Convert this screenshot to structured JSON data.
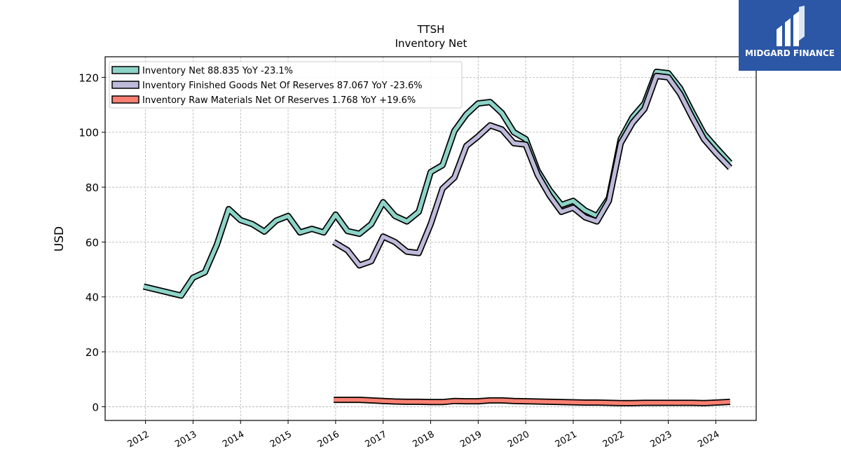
{
  "chart_data": {
    "type": "line",
    "title": "TTSH",
    "subtitle": "Inventory Net",
    "ylabel": "USD",
    "xlabel": "",
    "ylim": [
      -5,
      127.5
    ],
    "xlim": [
      2011.15,
      2024.85
    ],
    "yticks": [
      0,
      20,
      40,
      60,
      80,
      100,
      120
    ],
    "xticks": [
      2012,
      2013,
      2014,
      2015,
      2016,
      2017,
      2018,
      2019,
      2020,
      2021,
      2022,
      2023,
      2024
    ],
    "xtick_labels": [
      "2012",
      "2013",
      "2014",
      "2015",
      "2016",
      "2017",
      "2018",
      "2019",
      "2020",
      "2021",
      "2022",
      "2023",
      "2024"
    ],
    "grid": true,
    "legend_position": "top-left",
    "series": [
      {
        "name": "Inventory Net",
        "legend_label": "Inventory Net  88.835 YoY -23.1%",
        "color": "#8dd3c7",
        "x": [
          2011.96,
          2012.75,
          2013.0,
          2013.25,
          2013.5,
          2013.75,
          2014.0,
          2014.25,
          2014.5,
          2014.75,
          2015.0,
          2015.25,
          2015.5,
          2015.75,
          2016.0,
          2016.25,
          2016.5,
          2016.75,
          2017.0,
          2017.25,
          2017.5,
          2017.75,
          2018.0,
          2018.25,
          2018.5,
          2018.75,
          2019.0,
          2019.25,
          2019.5,
          2019.75,
          2020.0,
          2020.25,
          2020.5,
          2020.75,
          2021.0,
          2021.25,
          2021.5,
          2021.75,
          2022.0,
          2022.25,
          2022.5,
          2022.75,
          2023.0,
          2023.25,
          2023.5,
          2023.75,
          2024.0,
          2024.3
        ],
        "y": [
          43.8,
          40.5,
          47.0,
          49.0,
          59.0,
          72.0,
          68.0,
          66.5,
          63.8,
          67.8,
          69.5,
          63.5,
          64.8,
          63.5,
          70.0,
          64.0,
          63.0,
          66.5,
          74.5,
          69.5,
          67.5,
          71.0,
          85.5,
          88.0,
          100.5,
          106.5,
          110.5,
          111.0,
          107.0,
          100.0,
          97.5,
          86.0,
          79.0,
          73.5,
          75.0,
          71.5,
          69.5,
          76.0,
          97.5,
          105.5,
          110.5,
          122.0,
          121.5,
          116.0,
          107.5,
          99.5,
          94.5,
          88.835
        ]
      },
      {
        "name": "Inventory Finished Goods Net Of Reserves",
        "legend_label": "Inventory Finished Goods Net Of Reserves  87.067 YoY -23.6%",
        "color": "#bebada",
        "x": [
          2015.96,
          2016.25,
          2016.5,
          2016.75,
          2017.0,
          2017.25,
          2017.5,
          2017.75,
          2018.0,
          2018.25,
          2018.5,
          2018.75,
          2019.0,
          2019.25,
          2019.5,
          2019.75,
          2020.0,
          2020.25,
          2020.5,
          2020.75,
          2021.0,
          2021.25,
          2021.5,
          2021.75,
          2022.0,
          2022.25,
          2022.5,
          2022.75,
          2023.0,
          2023.25,
          2023.5,
          2023.75,
          2024.0,
          2024.3
        ],
        "y": [
          60.0,
          57.0,
          51.5,
          53.0,
          62.0,
          60.0,
          56.5,
          56.0,
          66.5,
          79.5,
          83.5,
          95.0,
          98.5,
          102.5,
          101.0,
          96.0,
          95.5,
          84.5,
          77.0,
          71.0,
          72.5,
          69.0,
          67.5,
          75.0,
          96.0,
          103.5,
          108.5,
          120.5,
          120.0,
          114.0,
          105.5,
          97.5,
          92.5,
          87.067
        ]
      },
      {
        "name": "Inventory Raw Materials Net Of Reserves",
        "legend_label": "Inventory Raw Materials Net Of Reserves  1.768 YoY +19.6%",
        "color": "#fb8072",
        "x": [
          2015.96,
          2016.25,
          2016.5,
          2016.75,
          2017.0,
          2017.25,
          2017.5,
          2017.75,
          2018.0,
          2018.25,
          2018.5,
          2018.75,
          2019.0,
          2019.25,
          2019.5,
          2019.75,
          2020.0,
          2020.25,
          2020.5,
          2020.75,
          2021.0,
          2021.25,
          2021.5,
          2021.75,
          2022.0,
          2022.25,
          2022.5,
          2022.75,
          2023.0,
          2023.25,
          2023.5,
          2023.75,
          2024.0,
          2024.3
        ],
        "y": [
          2.5,
          2.5,
          2.5,
          2.3,
          2.1,
          1.9,
          1.8,
          1.8,
          1.7,
          1.7,
          2.1,
          2.0,
          2.0,
          2.3,
          2.3,
          2.1,
          2.0,
          1.9,
          1.8,
          1.7,
          1.6,
          1.5,
          1.5,
          1.4,
          1.3,
          1.3,
          1.4,
          1.4,
          1.4,
          1.4,
          1.4,
          1.3,
          1.5,
          1.768
        ]
      }
    ]
  },
  "logo": {
    "name": "MIDGARD FINANCE",
    "background": "#2b57a6"
  }
}
